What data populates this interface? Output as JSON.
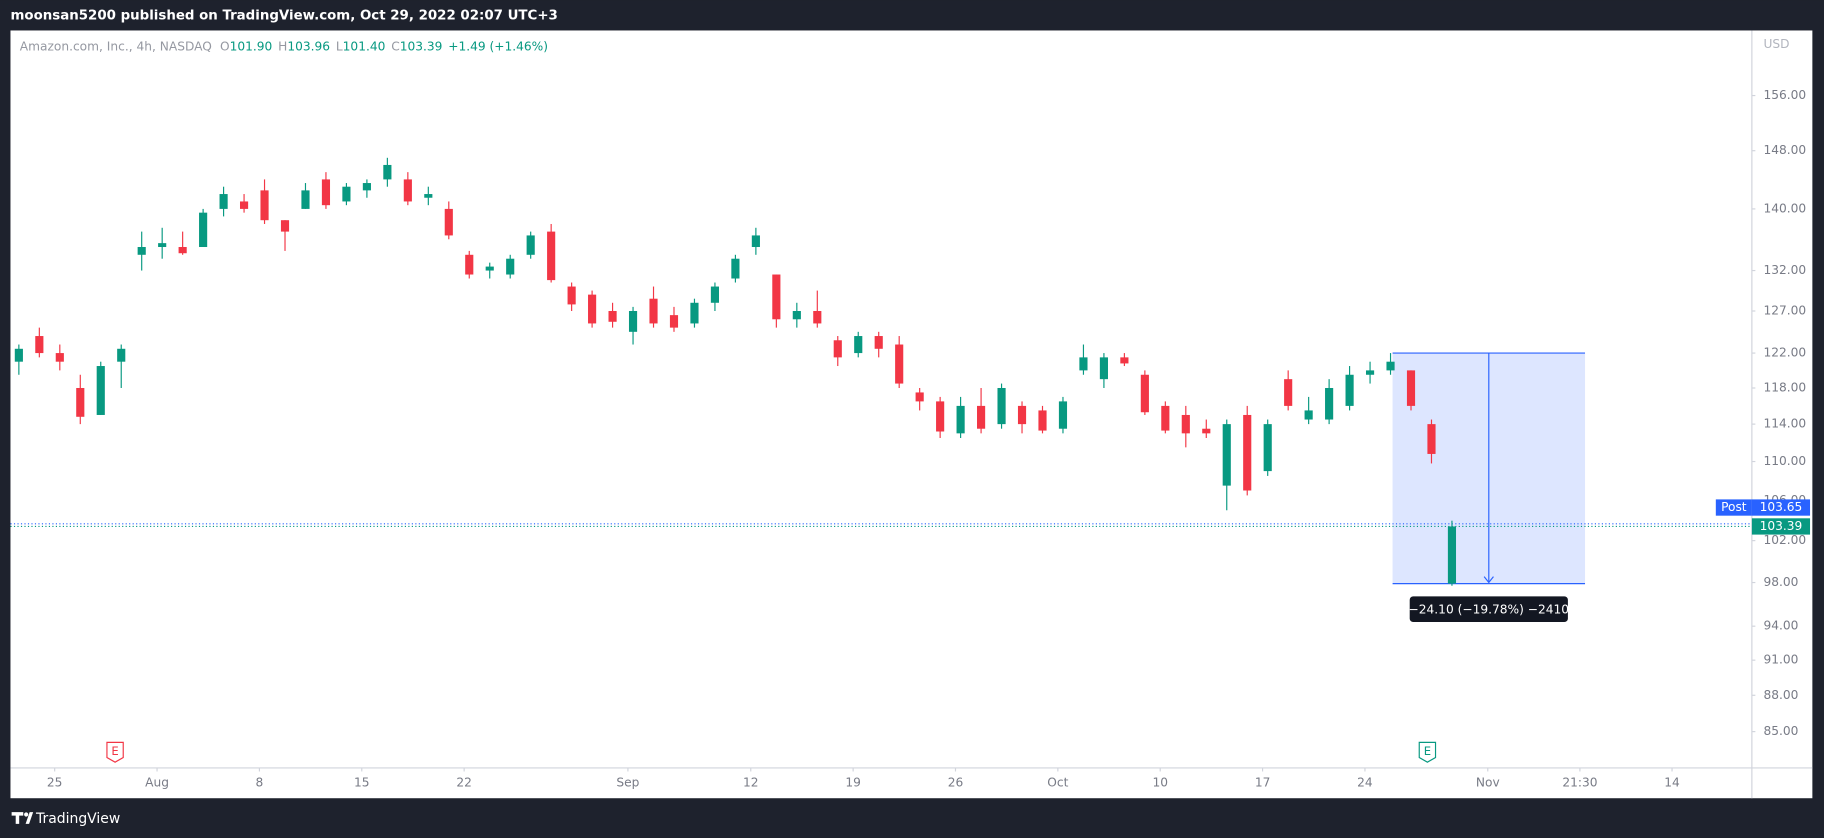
{
  "top_bar": {
    "text": "moonsan5200 published on TradingView.com, Oct 29, 2022 02:07 UTC+3"
  },
  "footer": {
    "brand": "TradingView"
  },
  "chart_data": {
    "type": "candlestick",
    "legend": {
      "symbol": "Amazon.com, Inc., 4h, NASDAQ",
      "items": [
        {
          "key": "O",
          "value": "101.90"
        },
        {
          "key": "H",
          "value": "103.96"
        },
        {
          "key": "L",
          "value": "101.40"
        },
        {
          "key": "C",
          "value": "103.39"
        }
      ],
      "change": "+1.49 (+1.46%)"
    },
    "currency": "USD",
    "up_color": "#089981",
    "down_color": "#f23645",
    "log_scale": true,
    "grid": false,
    "x": [
      -3.5,
      -1.5,
      0.5,
      2.5,
      4.5,
      6.5,
      8.5,
      10.5,
      12.5,
      14.5,
      16.5,
      18.5,
      20.5,
      22.5,
      24.5,
      26.5,
      28.5,
      30.5,
      32.5,
      34.5,
      36.5,
      38.5,
      40.5,
      42.5,
      44.5,
      46.5,
      48.5,
      50.5,
      52.5,
      54.5,
      56.5,
      58.5,
      60.5,
      62.5,
      64.5,
      66.5,
      68.5,
      70.5,
      72.5,
      74.5,
      76.5,
      78.5,
      80.5,
      82.5,
      84.5,
      86.5,
      88.5,
      90.5,
      92.5,
      94.5,
      96.5,
      98.5,
      100.5,
      102.5,
      104.5,
      106.5,
      108.5,
      110.5,
      112.5,
      114.5,
      116.5,
      118.5,
      120.5,
      122.5,
      124.5,
      126.5,
      128.5,
      130.5,
      132.5,
      134.5,
      136.5
    ],
    "open": [
      121,
      124,
      122,
      118,
      115,
      121,
      134,
      135,
      135,
      135,
      140,
      141,
      142.5,
      138.5,
      140,
      144,
      141,
      142.5,
      144,
      144,
      141.5,
      140,
      134,
      132,
      131.5,
      134,
      137,
      130,
      129,
      127,
      124.5,
      128.5,
      126.5,
      125.5,
      128,
      131,
      135,
      131.5,
      126,
      127,
      123.5,
      122,
      124,
      123,
      117.5,
      116.5,
      113,
      116,
      114,
      116,
      115.5,
      113.5,
      120,
      119,
      121.5,
      119.5,
      116,
      115,
      113.5,
      107.5,
      115,
      109,
      119,
      114.5,
      114.5,
      116,
      119.5,
      120,
      120,
      114,
      97.9
    ],
    "high": [
      123,
      125,
      123,
      119.5,
      121,
      123,
      137,
      137.5,
      137,
      140,
      143,
      142,
      144,
      138.5,
      143.5,
      145,
      143.5,
      144,
      147,
      145,
      143,
      141,
      134.5,
      133,
      134,
      137,
      138,
      130.5,
      129.5,
      128,
      127.5,
      130,
      127.5,
      128.5,
      130.5,
      134,
      137.5,
      131.5,
      128,
      129.5,
      124,
      124.5,
      124.5,
      124,
      118,
      117,
      117,
      118,
      118.5,
      116.5,
      116,
      117,
      123,
      122,
      122,
      120,
      116.5,
      116,
      114.5,
      114.5,
      116,
      114.5,
      120,
      117,
      119,
      120.5,
      121,
      122,
      120,
      114.5,
      103.96
    ],
    "low": [
      119.5,
      121.5,
      120,
      114,
      115,
      118,
      132,
      133.5,
      134,
      135,
      139,
      139.5,
      138,
      134.5,
      140,
      140,
      140.5,
      141.5,
      143,
      140.5,
      140.5,
      136,
      131,
      131,
      131,
      133.5,
      130.5,
      127,
      125,
      125,
      123,
      125,
      124.5,
      125,
      127,
      130.5,
      134,
      125,
      125,
      125,
      120.5,
      121.5,
      121.5,
      118,
      115.5,
      112.5,
      112.5,
      113,
      113.5,
      113,
      113,
      113,
      119.5,
      118,
      120.5,
      115,
      113,
      111.5,
      112.5,
      105,
      106.5,
      108.5,
      115.5,
      114,
      114,
      115.5,
      118.5,
      119.5,
      115.5,
      109.8,
      97.7
    ],
    "close": [
      122.5,
      122,
      121,
      114.8,
      120.5,
      122.5,
      135,
      135.5,
      134.2,
      139.5,
      142,
      140,
      138.5,
      137,
      142.5,
      140.5,
      143,
      143.5,
      146,
      141,
      142,
      136.5,
      131.5,
      132.5,
      133.5,
      136.5,
      130.8,
      127.8,
      125.5,
      125.7,
      127,
      125.5,
      125,
      128,
      130,
      133.5,
      136.5,
      126,
      127,
      125.5,
      121.5,
      124,
      122.5,
      118.5,
      116.5,
      113.2,
      116,
      113.5,
      118,
      114,
      113.3,
      116.5,
      121.5,
      121.5,
      120.8,
      115.3,
      113.3,
      113,
      113,
      114,
      107,
      114,
      116,
      115.5,
      118,
      119.5,
      120,
      121,
      116,
      110.8,
      103.39
    ],
    "xlim": [
      -4.32,
      165.8
    ],
    "xticks": [
      {
        "value": 0,
        "label": "25"
      },
      {
        "value": 10,
        "label": "Aug"
      },
      {
        "value": 20,
        "label": "8"
      },
      {
        "value": 30,
        "label": "15"
      },
      {
        "value": 40,
        "label": "22"
      },
      {
        "value": 56,
        "label": "Sep"
      },
      {
        "value": 68,
        "label": "12"
      },
      {
        "value": 78,
        "label": "19"
      },
      {
        "value": 88,
        "label": "26"
      },
      {
        "value": 98,
        "label": "Oct"
      },
      {
        "value": 108,
        "label": "10"
      },
      {
        "value": 118,
        "label": "17"
      },
      {
        "value": 128,
        "label": "24"
      },
      {
        "value": 140,
        "label": "Nov"
      },
      {
        "value": 149,
        "label": "21:30"
      },
      {
        "value": 158,
        "label": "14"
      }
    ],
    "ylim": [
      82.1,
      166.0
    ],
    "yticks": [
      {
        "value": 156,
        "label": "156.00"
      },
      {
        "value": 148,
        "label": "148.00"
      },
      {
        "value": 140,
        "label": "140.00"
      },
      {
        "value": 132,
        "label": "132.00"
      },
      {
        "value": 127,
        "label": "127.00"
      },
      {
        "value": 122,
        "label": "122.00"
      },
      {
        "value": 118,
        "label": "118.00"
      },
      {
        "value": 114,
        "label": "114.00"
      },
      {
        "value": 110,
        "label": "110.00"
      },
      {
        "value": 106,
        "label": "106.00"
      },
      {
        "value": 102,
        "label": "102.00"
      },
      {
        "value": 98,
        "label": "98.00"
      },
      {
        "value": 94,
        "label": "94.00"
      },
      {
        "value": 91,
        "label": "91.00"
      },
      {
        "value": 88,
        "label": "88.00"
      },
      {
        "value": 85,
        "label": "85.00"
      }
    ],
    "post": {
      "label": "Post",
      "value": 103.65,
      "color": "#2962ff"
    },
    "last_price": 103.39,
    "measure": {
      "price_from": 122,
      "price_to": 97.9,
      "x_from": 130.7,
      "x_to": 149.5,
      "label": "−24.10 (−19.78%) −2410"
    },
    "events": [
      {
        "x": 5.9,
        "label": "E",
        "color": "#f23645"
      },
      {
        "x": 134.1,
        "label": "E",
        "color": "#089981"
      }
    ]
  }
}
